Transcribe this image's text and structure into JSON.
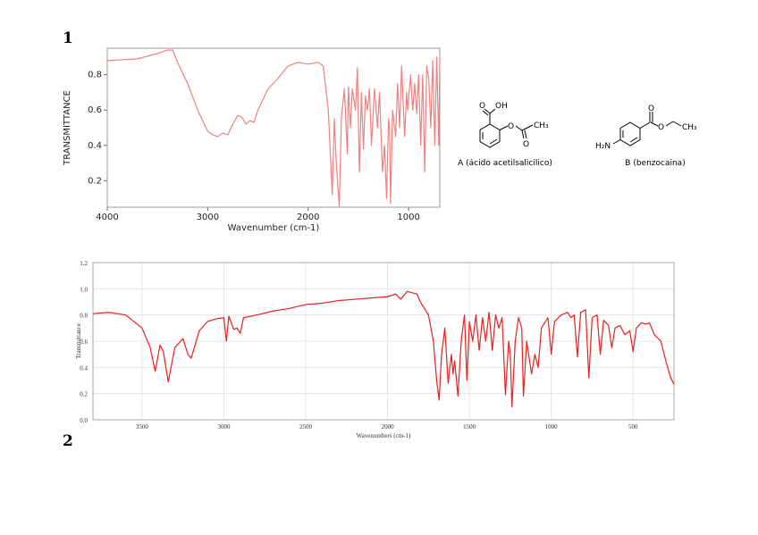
{
  "labels": [
    "1",
    "2"
  ],
  "chart_data": [
    {
      "type": "line",
      "xlabel": "Wavenumber (cm-1)",
      "ylabel": "TRANSMITTANCE",
      "xlim": [
        4000,
        690
      ],
      "ylim": [
        0.05,
        0.95
      ],
      "xticks": [
        4000,
        3000,
        2000,
        1000
      ],
      "yticks": [
        0.2,
        0.4,
        0.6,
        0.8
      ],
      "grid": false,
      "series": [
        {
          "color": "#f28080",
          "x": [
            4000,
            3700,
            3500,
            3400,
            3350,
            3300,
            3200,
            3100,
            3000,
            2950,
            2900,
            2850,
            2800,
            2750,
            2700,
            2660,
            2620,
            2580,
            2540,
            2500,
            2400,
            2300,
            2200,
            2100,
            2000,
            1900,
            1850,
            1800,
            1760,
            1740,
            1720,
            1690,
            1670,
            1640,
            1610,
            1600,
            1580,
            1560,
            1530,
            1510,
            1490,
            1470,
            1450,
            1430,
            1410,
            1390,
            1370,
            1340,
            1310,
            1290,
            1260,
            1240,
            1220,
            1200,
            1190,
            1180,
            1160,
            1130,
            1110,
            1090,
            1070,
            1040,
            1020,
            1010,
            980,
            960,
            940,
            920,
            900,
            880,
            860,
            840,
            820,
            800,
            780,
            760,
            740,
            720,
            700,
            690
          ],
          "values": [
            0.88,
            0.89,
            0.92,
            0.94,
            0.94,
            0.87,
            0.75,
            0.6,
            0.48,
            0.46,
            0.45,
            0.47,
            0.46,
            0.52,
            0.57,
            0.56,
            0.52,
            0.54,
            0.53,
            0.6,
            0.72,
            0.78,
            0.85,
            0.87,
            0.86,
            0.87,
            0.85,
            0.6,
            0.12,
            0.55,
            0.3,
            0.05,
            0.55,
            0.72,
            0.35,
            0.73,
            0.5,
            0.72,
            0.6,
            0.84,
            0.25,
            0.7,
            0.38,
            0.68,
            0.6,
            0.72,
            0.4,
            0.72,
            0.5,
            0.7,
            0.25,
            0.4,
            0.1,
            0.55,
            0.5,
            0.07,
            0.6,
            0.45,
            0.75,
            0.5,
            0.85,
            0.45,
            0.7,
            0.6,
            0.8,
            0.6,
            0.75,
            0.58,
            0.8,
            0.4,
            0.8,
            0.25,
            0.85,
            0.78,
            0.5,
            0.88,
            0.4,
            0.9,
            0.4,
            0.9
          ]
        }
      ]
    },
    {
      "type": "line",
      "xlabel": "Wavenumbers (cm-1)",
      "ylabel": "Transmittance",
      "xlim": [
        3800,
        250
      ],
      "ylim": [
        0,
        1.2
      ],
      "xticks": [
        3500,
        3000,
        2500,
        2000,
        1500,
        1000,
        500
      ],
      "yticks": [
        {
          "value": 0,
          "label": "0.0"
        },
        0.2,
        0.4,
        0.6,
        0.8,
        {
          "value": 1,
          "label": "1.0"
        },
        1.2
      ],
      "grid": true,
      "series": [
        {
          "color": "#e8201e",
          "x": [
            3800,
            3700,
            3600,
            3500,
            3450,
            3420,
            3390,
            3370,
            3340,
            3300,
            3250,
            3220,
            3200,
            3150,
            3100,
            3050,
            3000,
            2985,
            2970,
            2940,
            2920,
            2900,
            2880,
            2800,
            2700,
            2600,
            2500,
            2400,
            2300,
            2200,
            2100,
            2000,
            1950,
            1920,
            1880,
            1820,
            1800,
            1750,
            1720,
            1700,
            1685,
            1670,
            1650,
            1630,
            1610,
            1600,
            1590,
            1570,
            1550,
            1530,
            1515,
            1500,
            1480,
            1460,
            1440,
            1420,
            1400,
            1380,
            1360,
            1340,
            1320,
            1300,
            1280,
            1260,
            1250,
            1240,
            1220,
            1200,
            1180,
            1170,
            1150,
            1120,
            1100,
            1080,
            1060,
            1020,
            1000,
            980,
            940,
            900,
            880,
            860,
            840,
            820,
            790,
            770,
            750,
            720,
            700,
            680,
            650,
            630,
            610,
            580,
            550,
            520,
            500,
            480,
            450,
            420,
            400,
            370,
            330,
            300,
            270,
            250
          ],
          "values": [
            0.81,
            0.82,
            0.8,
            0.7,
            0.55,
            0.37,
            0.57,
            0.52,
            0.29,
            0.55,
            0.62,
            0.5,
            0.47,
            0.68,
            0.75,
            0.77,
            0.78,
            0.6,
            0.79,
            0.69,
            0.7,
            0.66,
            0.78,
            0.8,
            0.83,
            0.85,
            0.88,
            0.89,
            0.91,
            0.92,
            0.93,
            0.94,
            0.96,
            0.92,
            0.98,
            0.96,
            0.9,
            0.8,
            0.6,
            0.3,
            0.15,
            0.5,
            0.7,
            0.28,
            0.5,
            0.35,
            0.45,
            0.18,
            0.6,
            0.8,
            0.3,
            0.75,
            0.6,
            0.8,
            0.53,
            0.78,
            0.6,
            0.82,
            0.53,
            0.8,
            0.7,
            0.78,
            0.19,
            0.6,
            0.5,
            0.1,
            0.6,
            0.78,
            0.7,
            0.18,
            0.6,
            0.35,
            0.5,
            0.4,
            0.7,
            0.78,
            0.5,
            0.75,
            0.8,
            0.82,
            0.78,
            0.8,
            0.48,
            0.82,
            0.84,
            0.32,
            0.78,
            0.8,
            0.5,
            0.76,
            0.72,
            0.55,
            0.7,
            0.72,
            0.65,
            0.68,
            0.52,
            0.7,
            0.74,
            0.73,
            0.74,
            0.65,
            0.6,
            0.45,
            0.32,
            0.27
          ]
        }
      ]
    }
  ],
  "structures": [
    {
      "caption": "A (ácido acetilsalicilico)",
      "atoms": [
        "O",
        "OH",
        "O",
        "CH₃",
        "O"
      ]
    },
    {
      "caption": "B (benzocaina)",
      "atoms": [
        "O",
        "O",
        "CH₃",
        "H₂N"
      ]
    }
  ]
}
